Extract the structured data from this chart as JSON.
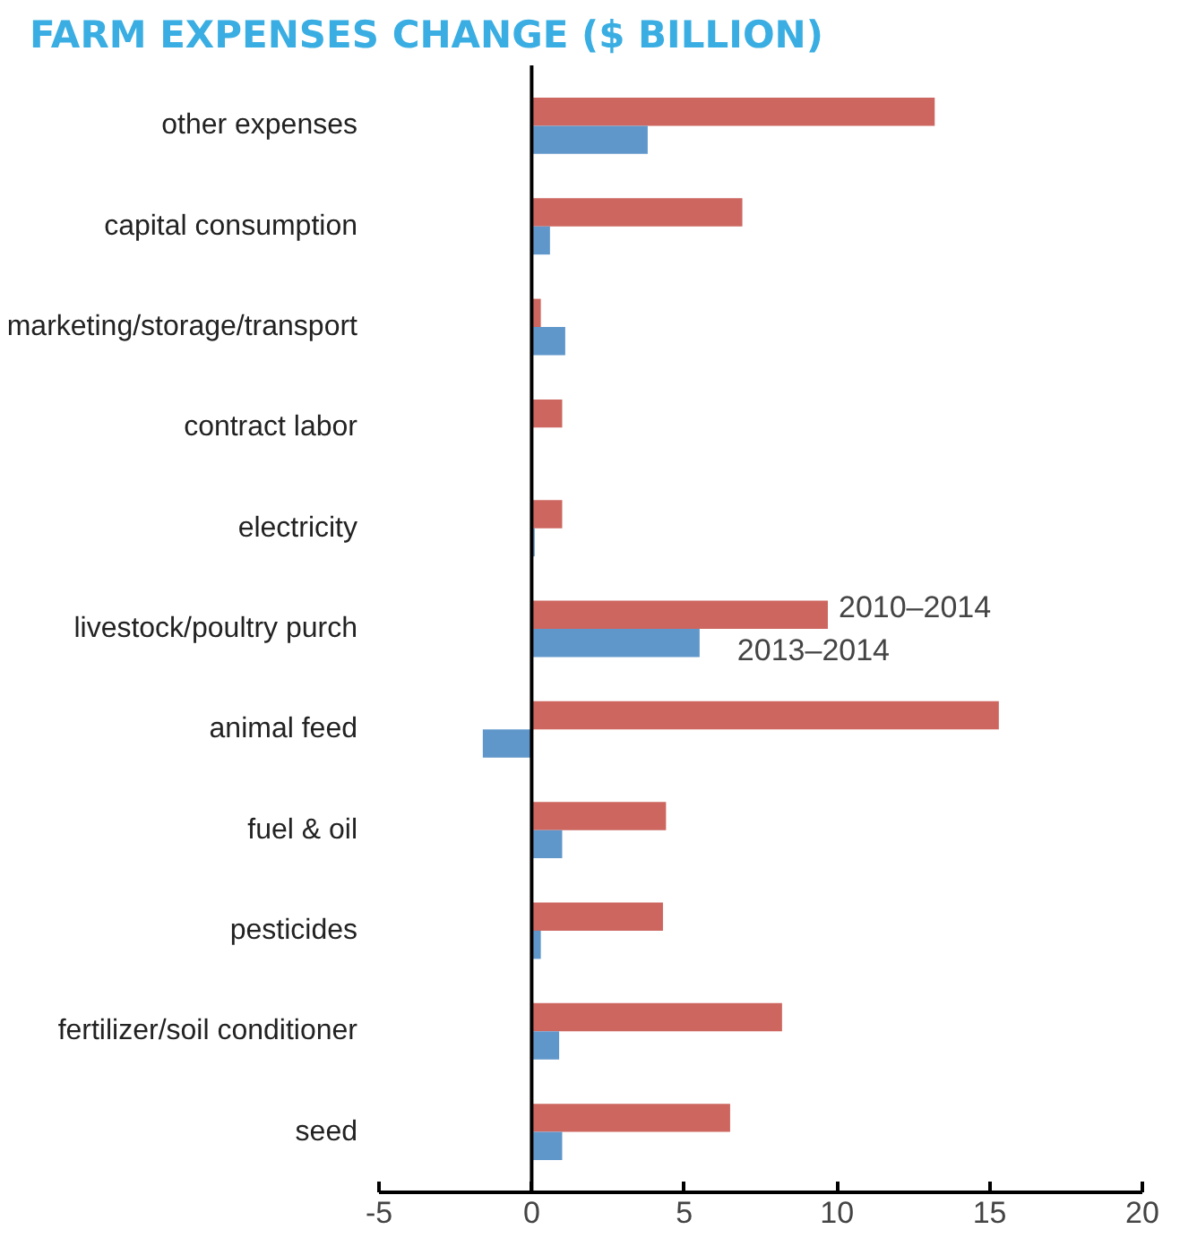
{
  "chart_data": {
    "type": "bar",
    "orientation": "horizontal",
    "title": "FARM EXPENSES CHANGE ($ BILLION)",
    "categories": [
      "other expenses",
      "capital consumption",
      "marketing/storage/transport",
      "contract labor",
      "electricity",
      "livestock/poultry purch",
      "animal feed",
      "fuel & oil",
      "pesticides",
      "fertilizer/soil conditioner",
      "seed"
    ],
    "series": [
      {
        "name": "2010–2014",
        "color": "#cd665f",
        "values": [
          13.2,
          6.9,
          0.3,
          1.0,
          1.0,
          9.7,
          15.3,
          4.4,
          4.3,
          8.2,
          6.5
        ]
      },
      {
        "name": "2013–2014",
        "color": "#6097ca",
        "values": [
          3.8,
          0.6,
          1.1,
          0,
          0.1,
          5.5,
          -1.6,
          1.0,
          0.3,
          0.9,
          1.0
        ]
      }
    ],
    "ref_lines": [
      {
        "axis": "x",
        "value": 0,
        "color": "#000000"
      }
    ],
    "xlim": [
      -5,
      20
    ],
    "xticks": [
      -5,
      0,
      5,
      10,
      15,
      20
    ],
    "grid": false,
    "legend": false
  }
}
